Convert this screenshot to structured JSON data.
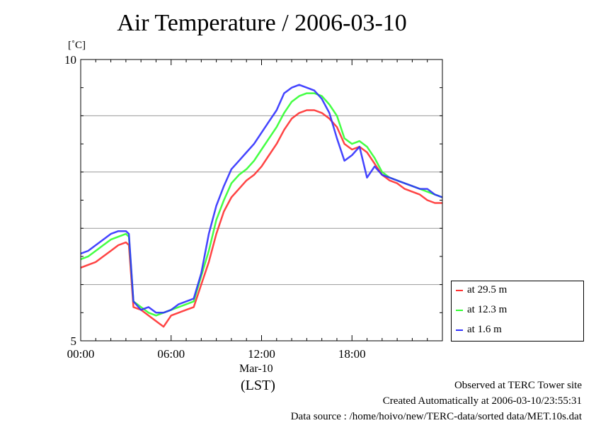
{
  "title": "Air Temperature / 2006-03-10",
  "chart_data": {
    "type": "line",
    "title": "Air Temperature / 2006-03-10",
    "ylabel": "[˚C]",
    "xlabel": "(LST)",
    "x_date_label": "Mar-10",
    "ylim": [
      5,
      10
    ],
    "xlim_hours": [
      0,
      24
    ],
    "y_tick_labels": [
      "5",
      "10"
    ],
    "y_gridlines": [
      6,
      7,
      8,
      9
    ],
    "x_tick_labels": [
      "00:00",
      "06:00",
      "12:00",
      "18:00"
    ],
    "x_ticks_hours": [
      0,
      6,
      12,
      18
    ],
    "grid": true,
    "legend_placement": "bottom-right outside",
    "x_hours": [
      0,
      0.5,
      1,
      1.5,
      2,
      2.5,
      3,
      3.2,
      3.5,
      4,
      4.5,
      5,
      5.5,
      6,
      6.5,
      7,
      7.5,
      8,
      8.5,
      9,
      9.5,
      10,
      10.5,
      11,
      11.5,
      12,
      12.5,
      13,
      13.5,
      14,
      14.5,
      15,
      15.5,
      16,
      16.5,
      17,
      17.5,
      18,
      18.5,
      19,
      19.5,
      20,
      20.5,
      21,
      21.5,
      22,
      22.5,
      23,
      23.5,
      24
    ],
    "series": [
      {
        "name": "at 29.5 m",
        "color": "#ff3030",
        "values": [
          6.3,
          6.35,
          6.4,
          6.5,
          6.6,
          6.7,
          6.75,
          6.7,
          5.6,
          5.55,
          5.45,
          5.35,
          5.25,
          5.45,
          5.5,
          5.55,
          5.6,
          6.0,
          6.4,
          6.9,
          7.3,
          7.55,
          7.7,
          7.85,
          7.95,
          8.1,
          8.3,
          8.5,
          8.75,
          8.95,
          9.05,
          9.1,
          9.1,
          9.05,
          8.95,
          8.8,
          8.5,
          8.4,
          8.45,
          8.35,
          8.15,
          7.95,
          7.85,
          7.8,
          7.7,
          7.65,
          7.6,
          7.5,
          7.45,
          7.45
        ]
      },
      {
        "name": "at 12.3 m",
        "color": "#30ff30",
        "values": [
          6.45,
          6.5,
          6.6,
          6.7,
          6.8,
          6.85,
          6.9,
          6.85,
          5.7,
          5.6,
          5.5,
          5.45,
          5.5,
          5.55,
          5.6,
          5.65,
          5.7,
          6.15,
          6.6,
          7.15,
          7.5,
          7.8,
          7.95,
          8.05,
          8.2,
          8.4,
          8.6,
          8.8,
          9.05,
          9.25,
          9.35,
          9.4,
          9.4,
          9.35,
          9.2,
          9.0,
          8.6,
          8.5,
          8.55,
          8.45,
          8.25,
          8.0,
          7.9,
          7.85,
          7.8,
          7.75,
          7.7,
          7.65,
          7.6,
          7.55
        ]
      },
      {
        "name": "at 1.6 m",
        "color": "#3030ff",
        "values": [
          6.55,
          6.6,
          6.7,
          6.8,
          6.9,
          6.95,
          6.95,
          6.9,
          5.7,
          5.55,
          5.6,
          5.5,
          5.5,
          5.55,
          5.65,
          5.7,
          5.75,
          6.2,
          6.9,
          7.4,
          7.75,
          8.05,
          8.2,
          8.35,
          8.5,
          8.7,
          8.9,
          9.1,
          9.4,
          9.5,
          9.55,
          9.5,
          9.45,
          9.3,
          9.05,
          8.6,
          8.2,
          8.3,
          8.45,
          7.9,
          8.1,
          7.95,
          7.9,
          7.85,
          7.8,
          7.75,
          7.7,
          7.7,
          7.6,
          7.55
        ]
      }
    ]
  },
  "footer": {
    "line1": "Observed at TERC Tower site",
    "line2": "Created Automatically at 2006-03-10/23:55:31",
    "line3": "Data source : /home/hoivo/new/TERC-data/sorted  data/MET.10s.dat"
  }
}
